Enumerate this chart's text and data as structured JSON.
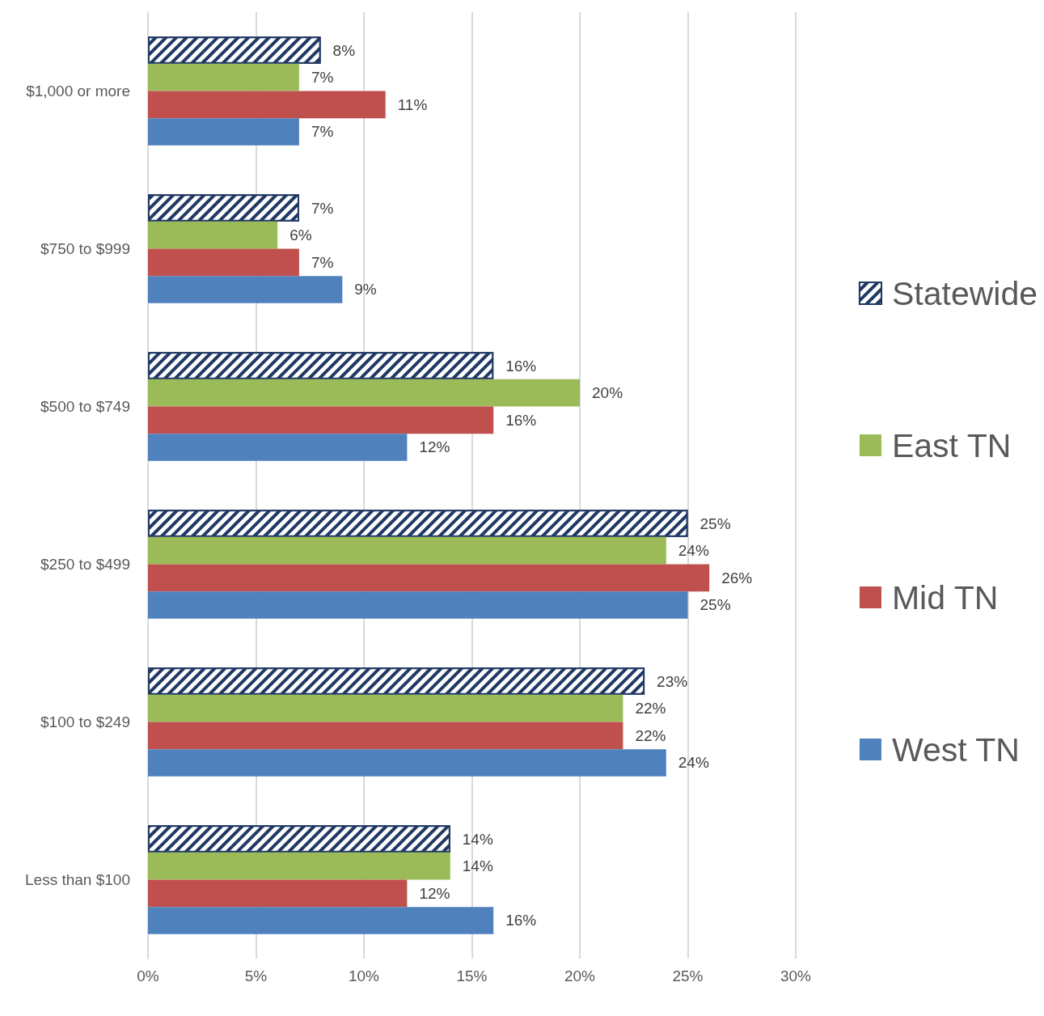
{
  "chart_data": {
    "type": "bar",
    "orientation": "horizontal",
    "categories": [
      "$1,000 or more",
      "$750 to $999",
      "$500 to $749",
      "$250 to $499",
      "$100 to $249",
      "Less than $100"
    ],
    "series": [
      {
        "name": "Statewide",
        "color": "#203864",
        "values": [
          8,
          7,
          16,
          25,
          23,
          14
        ],
        "value_labels": [
          "8%",
          "7%",
          "16%",
          "25%",
          "23%",
          "14%"
        ]
      },
      {
        "name": "East TN",
        "color": "#9bbb59",
        "values": [
          7,
          6,
          20,
          24,
          22,
          14
        ],
        "value_labels": [
          "7%",
          "6%",
          "20%",
          "24%",
          "22%",
          "14%"
        ]
      },
      {
        "name": "Mid TN",
        "color": "#c0504d",
        "values": [
          11,
          7,
          16,
          26,
          22,
          12
        ],
        "value_labels": [
          "11%",
          "7%",
          "16%",
          "26%",
          "22%",
          "12%"
        ]
      },
      {
        "name": "West TN",
        "color": "#4f81bd",
        "values": [
          7,
          9,
          12,
          25,
          24,
          16
        ],
        "value_labels": [
          "7%",
          "9%",
          "12%",
          "25%",
          "24%",
          "16%"
        ]
      }
    ],
    "xlim": [
      0,
      30
    ],
    "xticks": [
      {
        "value": 0,
        "label": "0%"
      },
      {
        "value": 5,
        "label": "5%"
      },
      {
        "value": 10,
        "label": "10%"
      },
      {
        "value": 15,
        "label": "15%"
      },
      {
        "value": 20,
        "label": "20%"
      },
      {
        "value": 25,
        "label": "25%"
      },
      {
        "value": 30,
        "label": "30%"
      }
    ],
    "grid": "x",
    "legend": "right"
  }
}
